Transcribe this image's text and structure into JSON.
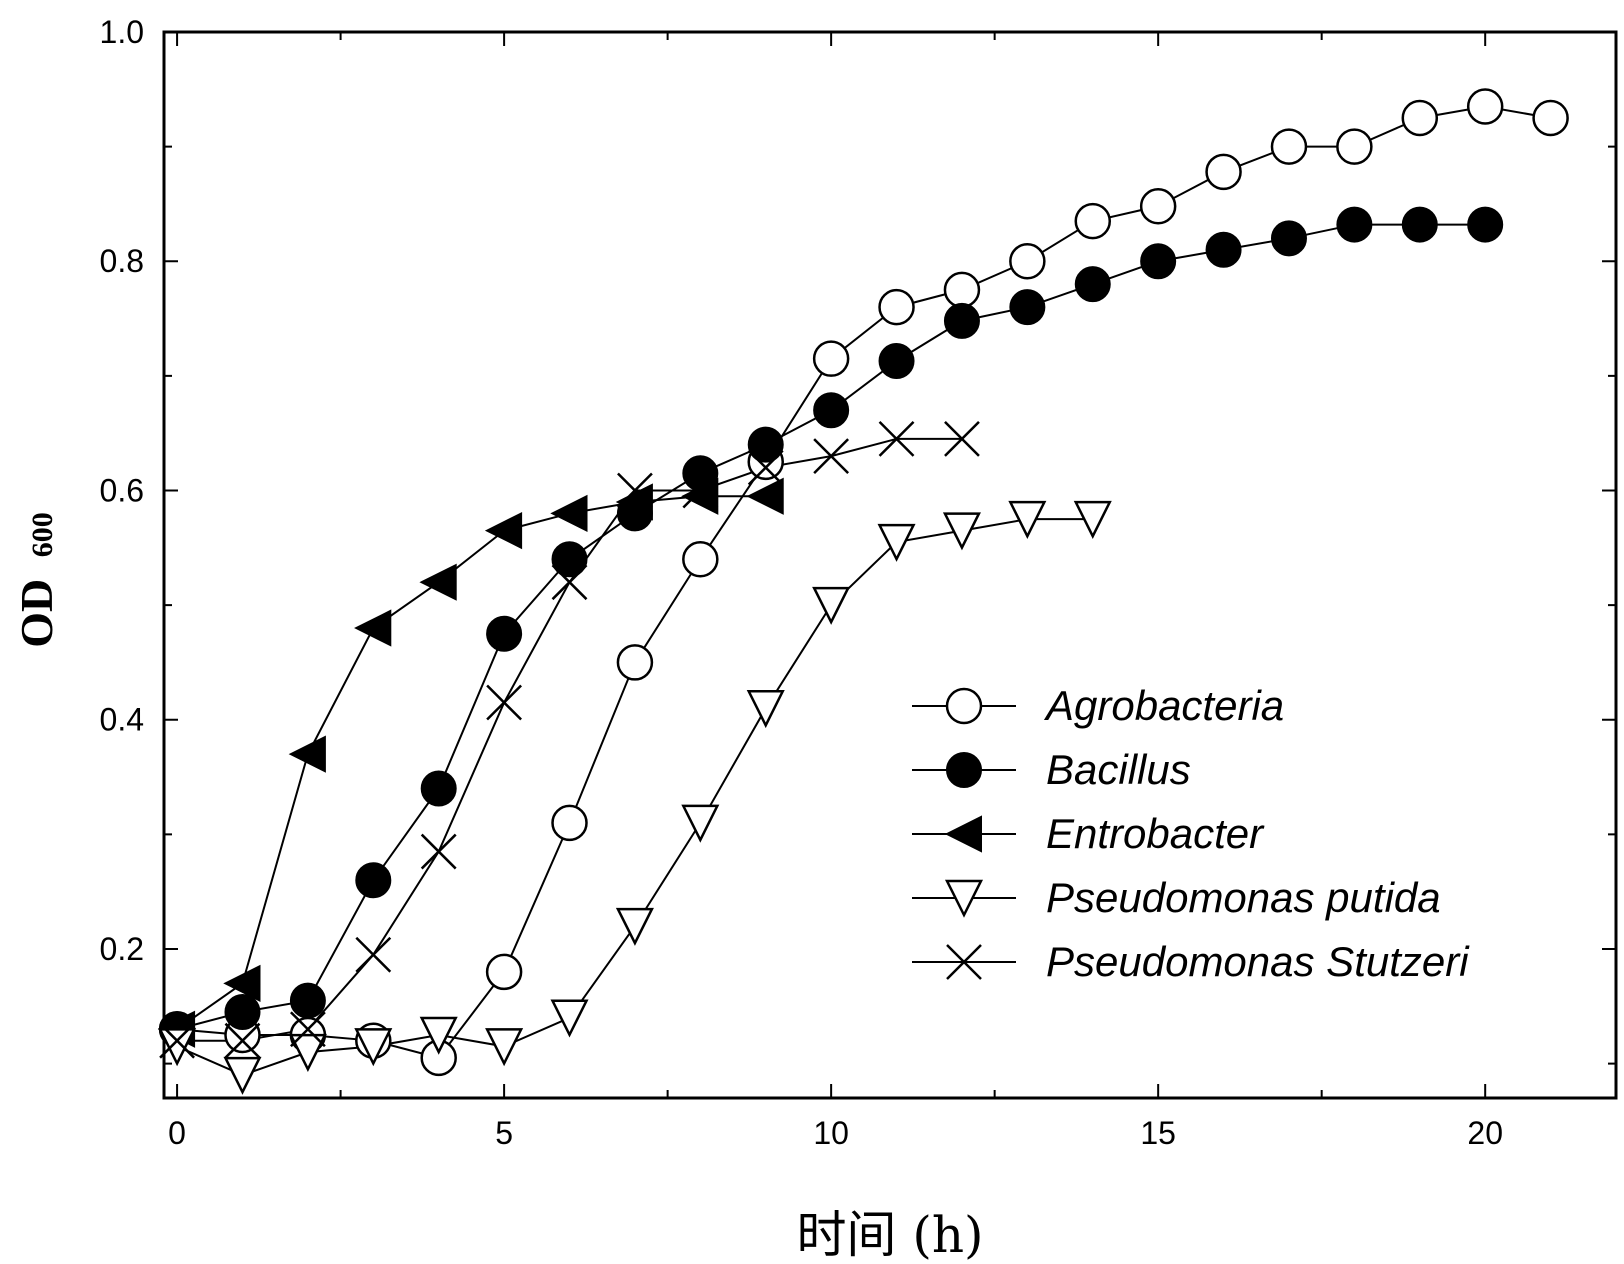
{
  "chart_data": {
    "type": "line",
    "xlabel": "时间 (h)",
    "ylabel": "OD",
    "ylabel_sub": "600",
    "xlim": [
      -0.2,
      22
    ],
    "ylim": [
      0.07,
      1.0
    ],
    "x_ticks": [
      0,
      5,
      10,
      15,
      20
    ],
    "x_tick_labels": [
      "0",
      "5",
      "10",
      "15",
      "20"
    ],
    "y_ticks": [
      0.2,
      0.4,
      0.6,
      0.8,
      1.0
    ],
    "y_tick_labels": [
      "0.2",
      "0.4",
      "0.6",
      "0.8",
      "1.0"
    ],
    "grid": false,
    "legend_position": "bottom-right",
    "series": [
      {
        "name": "Agrobacteria",
        "marker": "circle-open",
        "x": [
          0,
          1,
          2,
          3,
          4,
          5,
          6,
          7,
          8,
          9,
          10,
          11,
          12,
          13,
          14,
          15,
          16,
          17,
          18,
          19,
          20,
          21
        ],
        "y": [
          0.13,
          0.125,
          0.125,
          0.12,
          0.105,
          0.18,
          0.31,
          0.45,
          0.54,
          0.625,
          0.715,
          0.76,
          0.775,
          0.8,
          0.835,
          0.848,
          0.878,
          0.9,
          0.9,
          0.925,
          0.935,
          0.925
        ]
      },
      {
        "name": "Bacillus",
        "marker": "circle-filled",
        "x": [
          0,
          1,
          2,
          3,
          4,
          5,
          6,
          7,
          8,
          9,
          10,
          11,
          12,
          13,
          14,
          15,
          16,
          17,
          18,
          19,
          20
        ],
        "y": [
          0.13,
          0.145,
          0.155,
          0.26,
          0.34,
          0.475,
          0.54,
          0.58,
          0.615,
          0.64,
          0.67,
          0.713,
          0.748,
          0.76,
          0.78,
          0.8,
          0.81,
          0.82,
          0.832,
          0.832,
          0.832
        ]
      },
      {
        "name": "Entrobacter",
        "marker": "triangle-left-filled",
        "x": [
          0,
          1,
          2,
          3,
          4,
          5,
          6,
          7,
          8,
          9
        ],
        "y": [
          0.13,
          0.17,
          0.37,
          0.48,
          0.52,
          0.565,
          0.58,
          0.59,
          0.595,
          0.595
        ]
      },
      {
        "name": "Pseudomonas putida",
        "marker": "triangle-down-open",
        "x": [
          0,
          1,
          2,
          3,
          4,
          5,
          6,
          7,
          8,
          9,
          10,
          11,
          12,
          13,
          14
        ],
        "y": [
          0.115,
          0.09,
          0.11,
          0.115,
          0.125,
          0.115,
          0.14,
          0.22,
          0.31,
          0.41,
          0.5,
          0.555,
          0.565,
          0.575,
          0.575
        ]
      },
      {
        "name": "Pseudomonas Stutzeri",
        "marker": "x",
        "x": [
          0,
          1,
          2,
          3,
          4,
          5,
          6,
          7,
          8,
          9,
          10,
          11,
          12
        ],
        "y": [
          0.12,
          0.12,
          0.13,
          0.195,
          0.285,
          0.415,
          0.52,
          0.6,
          0.6,
          0.62,
          0.63,
          0.645,
          0.645
        ]
      }
    ]
  }
}
